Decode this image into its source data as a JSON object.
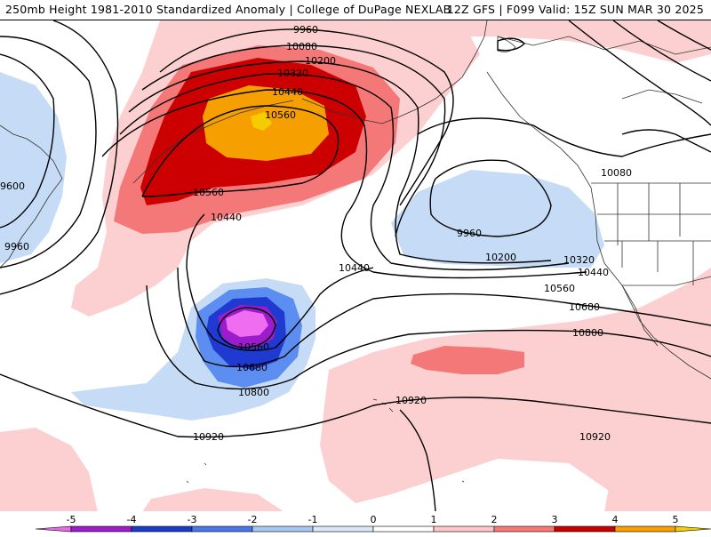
{
  "header": {
    "left_title": "250mb Height 1981-2010 Standardized Anomaly | College of DuPage NEXLAB",
    "right_title": "12Z GFS | F099 Valid: 15Z SUN MAR 30 2025"
  },
  "contour_labels": [
    "9960",
    "10080",
    "10200",
    "10320",
    "10440",
    "10560",
    "9600",
    "9960",
    "10560",
    "10440",
    "10080",
    "9960",
    "10200",
    "10320",
    "10440",
    "10560",
    "10440",
    "10680",
    "10800",
    "10560",
    "10680",
    "10800",
    "10920",
    "10920",
    "10920"
  ],
  "colorbar": {
    "ticks": [
      "-5",
      "-4",
      "-3",
      "-2",
      "-1",
      "0",
      "1",
      "2",
      "3",
      "4",
      "5"
    ],
    "colors": [
      "#e868e8",
      "#9c1cc8",
      "#1c3cc8",
      "#4a78e8",
      "#a8c8f0",
      "#d8e8f8",
      "#ffffff",
      "#ffc8c8",
      "#f87878",
      "#c80000",
      "#f8a000",
      "#f8d000"
    ]
  },
  "fill_colors": {
    "anom_neg1": "#c6dcf6",
    "anom_neg2": "#5b8ef0",
    "anom_neg3": "#1e3ad0",
    "anom_neg4": "#9a1ccb",
    "anom_neg5": "#f06cf0",
    "anom_pos1": "#fcd0d0",
    "anom_pos2": "#f47878",
    "anom_pos3": "#cc0000",
    "anom_pos4": "#f5a000",
    "anom_pos5": "#f5cc00"
  }
}
